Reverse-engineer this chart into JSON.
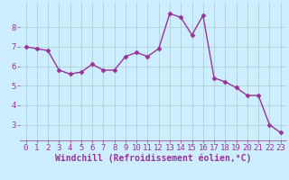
{
  "x": [
    0,
    1,
    2,
    3,
    4,
    5,
    6,
    7,
    8,
    9,
    10,
    11,
    12,
    13,
    14,
    15,
    16,
    17,
    18,
    19,
    20,
    21,
    22,
    23
  ],
  "y": [
    7.0,
    6.9,
    6.8,
    5.8,
    5.6,
    5.7,
    6.1,
    5.8,
    5.8,
    6.5,
    6.7,
    6.5,
    6.9,
    8.7,
    8.5,
    7.6,
    8.6,
    5.4,
    5.2,
    4.9,
    4.5,
    4.5,
    3.0,
    2.6
  ],
  "line_color": "#993399",
  "marker": "D",
  "marker_size": 2.5,
  "bg_color": "#cceeff",
  "grid_color": "#aacccc",
  "xlabel": "Windchill (Refroidissement éolien,°C)",
  "xlabel_color": "#993399",
  "tick_color": "#993399",
  "ylim": [
    2.2,
    9.3
  ],
  "xlim": [
    -0.5,
    23.5
  ],
  "yticks": [
    3,
    4,
    5,
    6,
    7,
    8
  ],
  "xticks": [
    0,
    1,
    2,
    3,
    4,
    5,
    6,
    7,
    8,
    9,
    10,
    11,
    12,
    13,
    14,
    15,
    16,
    17,
    18,
    19,
    20,
    21,
    22,
    23
  ],
  "spine_color": "#993399",
  "linewidth": 1.0,
  "tick_fontsize": 6.5,
  "xlabel_fontsize": 7.0
}
